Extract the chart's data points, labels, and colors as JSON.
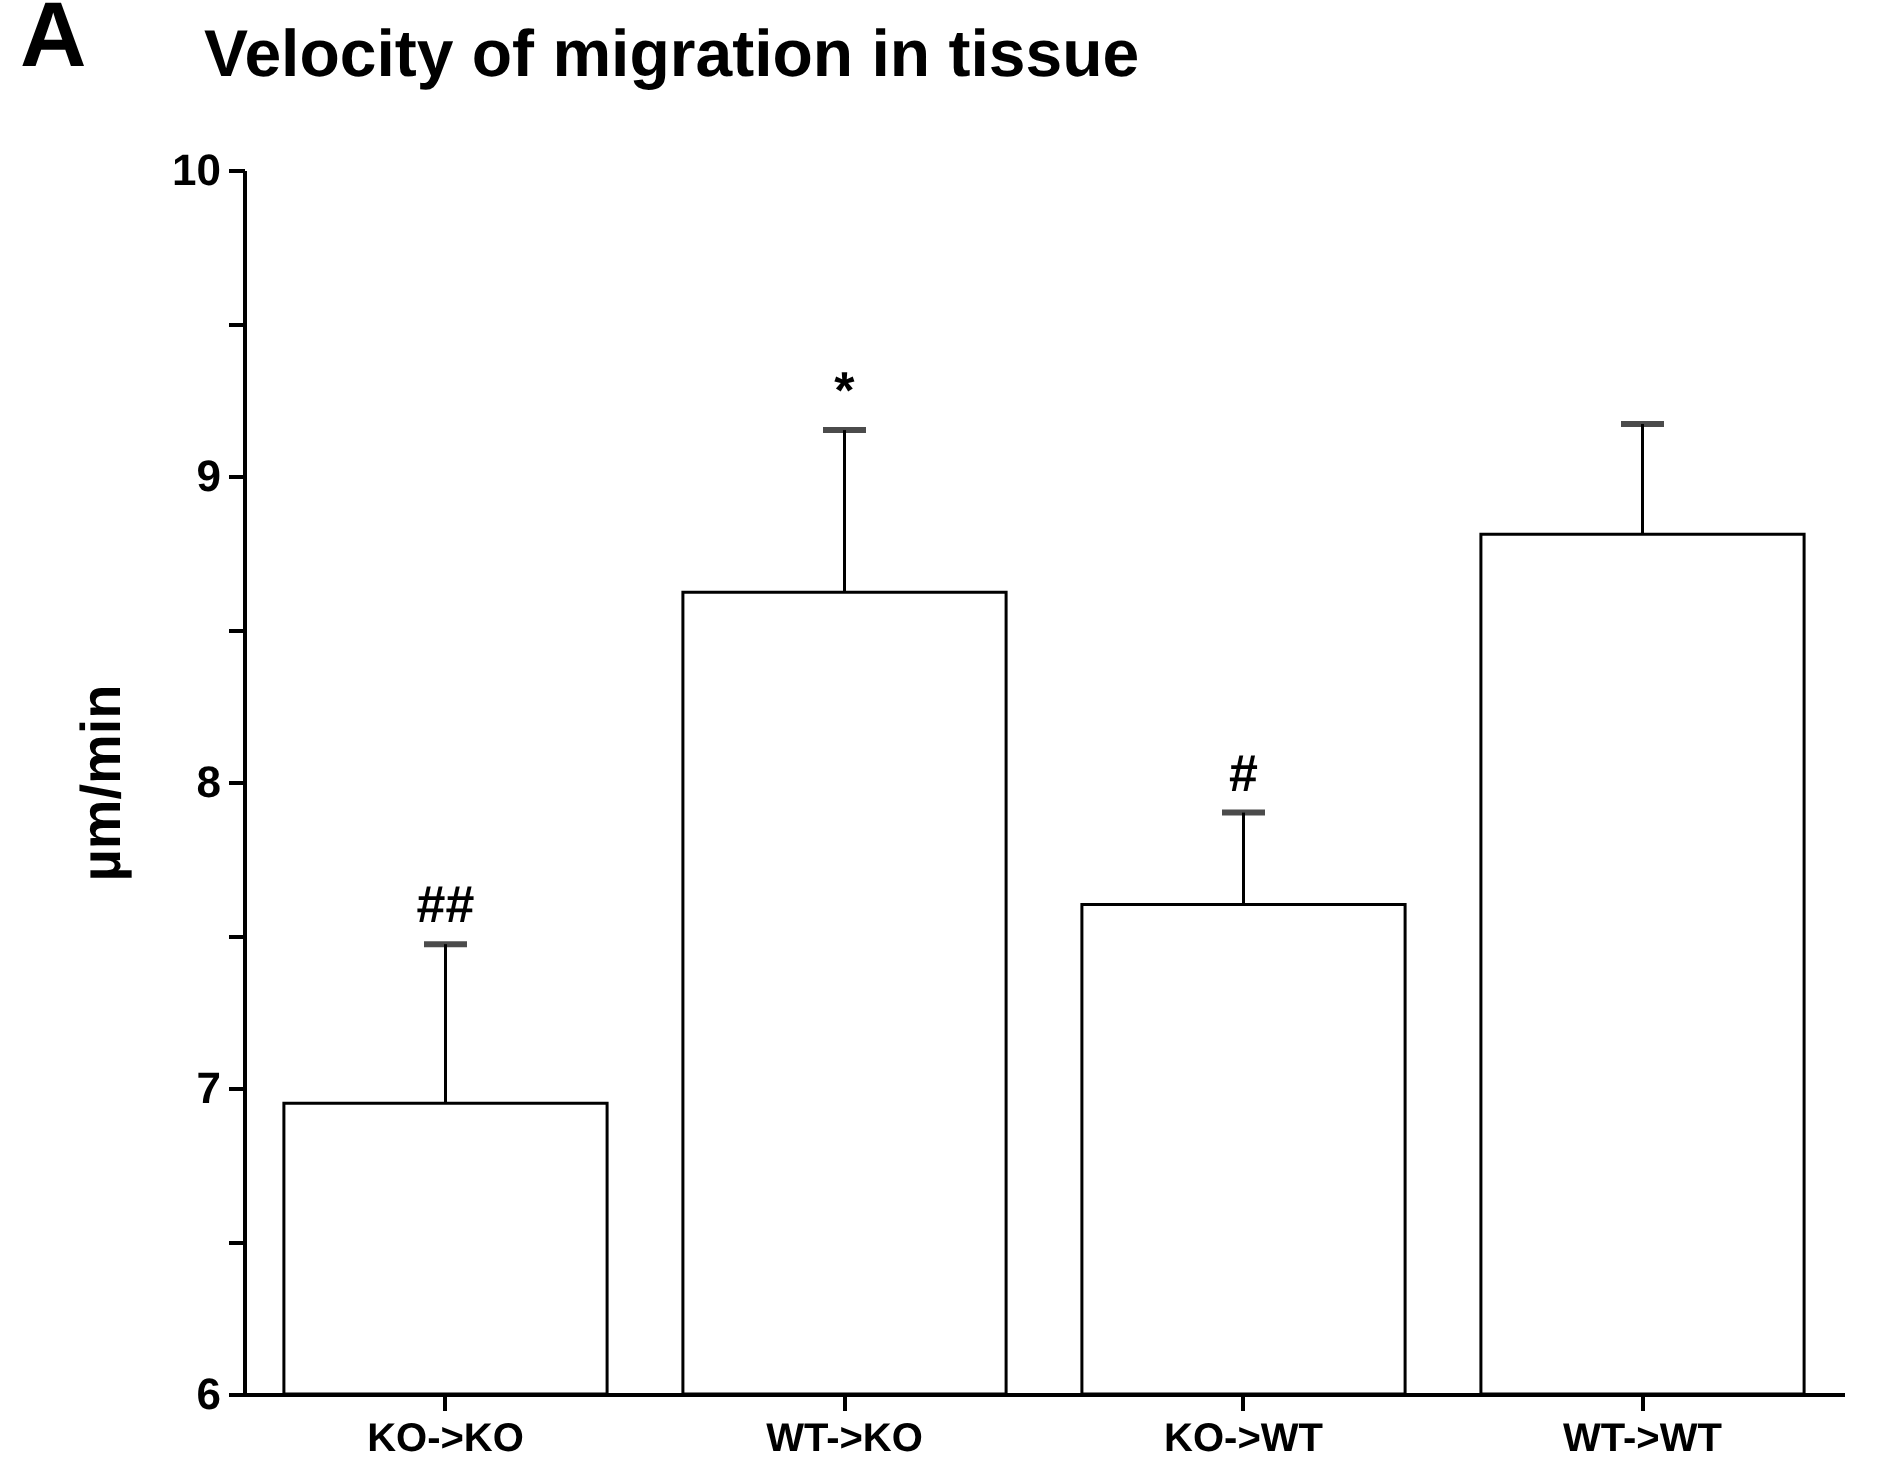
{
  "chart_data": {
    "type": "bar",
    "title": "Velocity of migration in tissue",
    "ylabel": "µm/min",
    "categories": [
      "KO->KO",
      "WT->KO",
      "KO->WT",
      "WT->WT"
    ],
    "values": [
      6.95,
      8.62,
      7.6,
      8.81
    ],
    "color": "#ffffff",
    "errors": [
      [
        6.95,
        7.47
      ],
      [
        8.62,
        9.15
      ],
      [
        7.6,
        7.9
      ],
      [
        8.81,
        9.17
      ]
    ],
    "ylim": [
      6,
      10
    ],
    "yticks": [
      6,
      {
        "value": 6.5,
        "label": null
      },
      7,
      {
        "value": 7.5,
        "label": null
      },
      8,
      {
        "value": 8.5,
        "label": null
      },
      9,
      {
        "value": 9.5,
        "label": null
      },
      10
    ],
    "annotations": [
      "A",
      {
        "text": "##",
        "x": "KO->KO",
        "y": 7.47
      },
      {
        "text": "*",
        "x": "WT->KO",
        "y": 9.15
      },
      {
        "text": "#",
        "x": "KO->WT",
        "y": 7.9
      }
    ],
    "grid": false
  }
}
